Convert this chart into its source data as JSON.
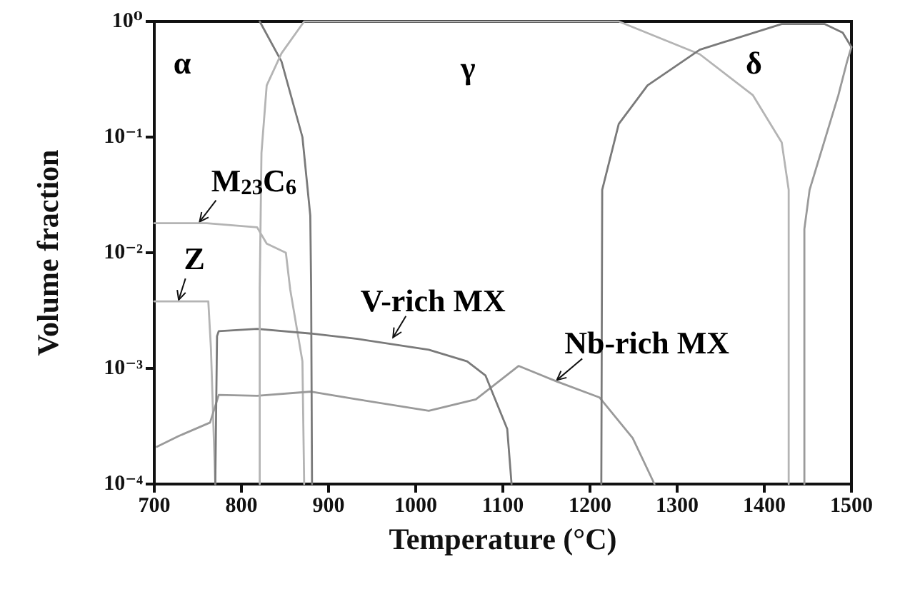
{
  "chart_data": {
    "type": "line",
    "xlabel": "Temperature (°C)",
    "ylabel": "Volume fraction",
    "xlim": [
      700,
      1500
    ],
    "xticks": [
      700,
      800,
      900,
      1000,
      1100,
      1200,
      1300,
      1400,
      1500
    ],
    "ylim": [
      0.0001,
      1
    ],
    "log": "y",
    "yticks": [
      {
        "value": 0.0001,
        "label": "10⁻⁴"
      },
      {
        "value": 0.001,
        "label": "10⁻³"
      },
      {
        "value": 0.01,
        "label": "10⁻²"
      },
      {
        "value": 0.1,
        "label": "10⁻¹"
      },
      {
        "value": 1,
        "label": "10⁰"
      }
    ],
    "grid": false,
    "marker": "none",
    "line_style": "solid",
    "series": [
      {
        "color": "#b4b4b4",
        "x": [
          700,
          760,
          818,
          829,
          851,
          856,
          870,
          872
        ],
        "values": [
          0.018,
          0.018,
          0.0166,
          0.012,
          0.01,
          0.0048,
          0.00115,
          0.0001
        ]
      },
      {
        "color": "#b4b4b4",
        "x": [
          700,
          762,
          765,
          770
        ],
        "values": [
          0.0038,
          0.0038,
          0.0015,
          0.0001
        ]
      },
      {
        "color": "#9a9a9a",
        "x": [
          703,
          728,
          764,
          774,
          818,
          880,
          933,
          1015,
          1069,
          1118,
          1162,
          1211,
          1249,
          1274
        ],
        "values": [
          0.00021,
          0.00026,
          0.00034,
          0.00059,
          0.00058,
          0.00063,
          0.00054,
          0.00043,
          0.00054,
          0.00105,
          0.00077,
          0.00056,
          0.00025,
          0.0001
        ]
      },
      {
        "color": "#7a7a7a",
        "x": [
          770,
          772,
          774,
          818,
          880,
          933,
          1015,
          1059,
          1080,
          1105,
          1110
        ],
        "values": [
          0.0001,
          0.0019,
          0.0021,
          0.0022,
          0.002,
          0.0018,
          0.00145,
          0.00115,
          0.00087,
          0.0003,
          0.0001
        ]
      },
      {
        "color": "#7a7a7a",
        "x": [
          821,
          846,
          870,
          879,
          880,
          881
        ],
        "values": [
          1,
          0.45,
          0.1,
          0.021,
          0.005,
          0.0001
        ]
      },
      {
        "color": "#b4b4b4",
        "x": [
          821,
          821,
          823,
          829,
          846,
          872,
          1233,
          1326,
          1387,
          1420,
          1428,
          1428
        ],
        "values": [
          0.0001,
          0.005,
          0.073,
          0.28,
          0.53,
          1,
          1,
          0.52,
          0.23,
          0.09,
          0.035,
          0.0001
        ]
      },
      {
        "color": "#7a7a7a",
        "x": [
          1213,
          1214,
          1233,
          1266,
          1326,
          1420,
          1469,
          1490,
          1500
        ],
        "values": [
          0.0001,
          0.035,
          0.13,
          0.28,
          0.57,
          0.95,
          0.95,
          0.8,
          0.6
        ]
      },
      {
        "color": "#9a9a9a",
        "x": [
          1446,
          1446,
          1452,
          1485,
          1495,
          1500
        ],
        "values": [
          0.0001,
          0.016,
          0.035,
          0.23,
          0.45,
          0.6
        ]
      }
    ],
    "annotations": [
      "α",
      "γ",
      "δ",
      {
        "text": "M$_{23}$C$_{6}$",
        "x": 752,
        "y": 0.018
      },
      {
        "text": "Z",
        "x": 728,
        "y": 0.0038
      },
      {
        "text": "V-rich MX",
        "x": 974,
        "y": 0.0018
      },
      {
        "text": "Nb-rich MX",
        "x": 1162,
        "y": 0.00077
      }
    ]
  }
}
